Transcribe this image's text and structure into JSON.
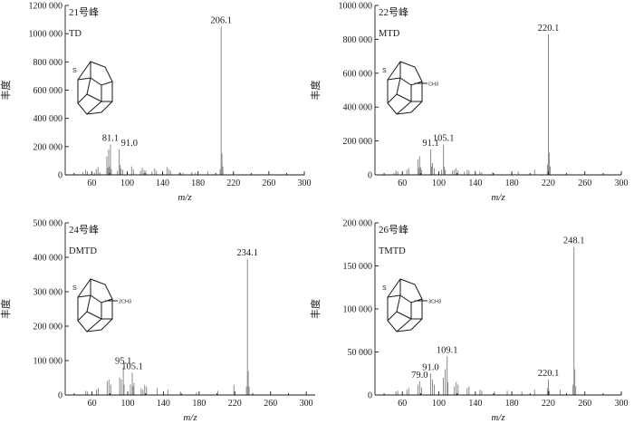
{
  "chart_data": [
    {
      "type": "bar",
      "title": "21号峰",
      "compound": "TD",
      "ylabel": "丰度",
      "xlabel": "m/z",
      "xlim": [
        30,
        300
      ],
      "xticks": [
        60,
        100,
        140,
        180,
        220,
        260,
        300
      ],
      "ylim": [
        0,
        1200000
      ],
      "yticks": [
        0,
        200000,
        400000,
        600000,
        800000,
        1000000,
        1200000
      ],
      "ytick_labels": [
        "0",
        "200 000",
        "400 000",
        "600 000",
        "800 000",
        "1000 000",
        "1200 000"
      ],
      "structure_label": "S",
      "structure_substituent": "",
      "peak_labels": [
        {
          "x": 81.1,
          "text": "81.1"
        },
        {
          "x": 91.0,
          "text": "91.0"
        },
        {
          "x": 206.1,
          "text": "206.1"
        }
      ],
      "peaks": [
        [
          50,
          20000
        ],
        [
          53,
          35000
        ],
        [
          55,
          25000
        ],
        [
          63,
          15000
        ],
        [
          65,
          40000
        ],
        [
          67,
          55000
        ],
        [
          69,
          20000
        ],
        [
          77,
          130000
        ],
        [
          78,
          50000
        ],
        [
          79,
          180000
        ],
        [
          80,
          60000
        ],
        [
          81.1,
          215000
        ],
        [
          82,
          40000
        ],
        [
          89,
          30000
        ],
        [
          91.0,
          180000
        ],
        [
          92,
          70000
        ],
        [
          93,
          45000
        ],
        [
          95,
          35000
        ],
        [
          105,
          60000
        ],
        [
          107,
          40000
        ],
        [
          115,
          30000
        ],
        [
          117,
          50000
        ],
        [
          119,
          35000
        ],
        [
          121,
          30000
        ],
        [
          128,
          25000
        ],
        [
          131,
          45000
        ],
        [
          133,
          30000
        ],
        [
          145,
          55000
        ],
        [
          147,
          40000
        ],
        [
          149,
          30000
        ],
        [
          159,
          20000
        ],
        [
          163,
          15000
        ],
        [
          173,
          20000
        ],
        [
          177,
          15000
        ],
        [
          191,
          25000
        ],
        [
          205,
          40000
        ],
        [
          206.1,
          1050000
        ],
        [
          207,
          150000
        ],
        [
          208,
          60000
        ]
      ]
    },
    {
      "type": "bar",
      "title": "22号峰",
      "compound": "MTD",
      "ylabel": "丰度",
      "xlabel": "m/z",
      "xlim": [
        30,
        300
      ],
      "xticks": [
        60,
        100,
        140,
        180,
        220,
        260,
        300
      ],
      "ylim": [
        0,
        1000000
      ],
      "yticks": [
        0,
        200000,
        400000,
        600000,
        800000,
        1000000
      ],
      "ytick_labels": [
        "0",
        "200 000",
        "400 000",
        "600 000",
        "800 000",
        "1000 000"
      ],
      "structure_label": "S",
      "structure_substituent": "CH3",
      "peak_labels": [
        {
          "x": 91.1,
          "text": "91.1"
        },
        {
          "x": 105.1,
          "text": "105.1"
        },
        {
          "x": 220.1,
          "text": "220.1"
        }
      ],
      "peaks": [
        [
          51,
          10000
        ],
        [
          53,
          25000
        ],
        [
          55,
          20000
        ],
        [
          65,
          30000
        ],
        [
          67,
          40000
        ],
        [
          77,
          90000
        ],
        [
          78,
          40000
        ],
        [
          79,
          110000
        ],
        [
          80,
          45000
        ],
        [
          81,
          30000
        ],
        [
          91.1,
          150000
        ],
        [
          92,
          50000
        ],
        [
          93,
          70000
        ],
        [
          95,
          40000
        ],
        [
          103,
          30000
        ],
        [
          105.1,
          180000
        ],
        [
          106,
          50000
        ],
        [
          107,
          30000
        ],
        [
          115,
          25000
        ],
        [
          117,
          30000
        ],
        [
          119,
          40000
        ],
        [
          121,
          25000
        ],
        [
          128,
          20000
        ],
        [
          131,
          30000
        ],
        [
          133,
          25000
        ],
        [
          145,
          20000
        ],
        [
          147,
          15000
        ],
        [
          159,
          15000
        ],
        [
          187,
          20000
        ],
        [
          205,
          30000
        ],
        [
          219,
          60000
        ],
        [
          220.1,
          830000
        ],
        [
          221,
          130000
        ],
        [
          222,
          50000
        ]
      ]
    },
    {
      "type": "bar",
      "title": "24号峰",
      "compound": "DMTD",
      "ylabel": "丰度",
      "xlabel": "m/z",
      "xlim": [
        30,
        310
      ],
      "xticks": [
        60,
        100,
        140,
        180,
        220,
        260,
        300
      ],
      "ylim": [
        0,
        500000
      ],
      "yticks": [
        0,
        100000,
        200000,
        300000,
        400000,
        500000
      ],
      "ytick_labels": [
        "0",
        "100 000",
        "200 000",
        "300 000",
        "400 000",
        "500 000"
      ],
      "structure_label": "S",
      "structure_substituent": "2CH3",
      "peak_labels": [
        {
          "x": 95.1,
          "text": "95.1"
        },
        {
          "x": 105.1,
          "text": "105.1"
        },
        {
          "x": 234.1,
          "text": "234.1"
        }
      ],
      "peaks": [
        [
          53,
          12000
        ],
        [
          55,
          10000
        ],
        [
          65,
          15000
        ],
        [
          67,
          20000
        ],
        [
          77,
          40000
        ],
        [
          79,
          45000
        ],
        [
          81,
          30000
        ],
        [
          91,
          50000
        ],
        [
          93,
          45000
        ],
        [
          95.1,
          80000
        ],
        [
          96,
          30000
        ],
        [
          103,
          30000
        ],
        [
          105.1,
          65000
        ],
        [
          106,
          25000
        ],
        [
          107,
          35000
        ],
        [
          115,
          20000
        ],
        [
          117,
          15000
        ],
        [
          119,
          30000
        ],
        [
          121,
          25000
        ],
        [
          133,
          20000
        ],
        [
          145,
          15000
        ],
        [
          159,
          10000
        ],
        [
          177,
          8000
        ],
        [
          201,
          12000
        ],
        [
          219,
          30000
        ],
        [
          233,
          25000
        ],
        [
          234.1,
          395000
        ],
        [
          235,
          70000
        ],
        [
          236,
          25000
        ]
      ]
    },
    {
      "type": "bar",
      "title": "26号峰",
      "compound": "TMTD",
      "ylabel": "丰度",
      "xlabel": "m/z",
      "xlim": [
        30,
        300
      ],
      "xticks": [
        60,
        100,
        140,
        180,
        220,
        260,
        300
      ],
      "ylim": [
        0,
        200000
      ],
      "yticks": [
        0,
        50000,
        100000,
        150000,
        200000
      ],
      "ytick_labels": [
        "0",
        "50 000",
        "100 000",
        "150 000",
        "200 000"
      ],
      "structure_label": "S",
      "structure_substituent": "3CH3",
      "peak_labels": [
        {
          "x": 79.0,
          "text": "79.0"
        },
        {
          "x": 91.0,
          "text": "91.0"
        },
        {
          "x": 109.1,
          "text": "109.1"
        },
        {
          "x": 220.1,
          "text": "220.1"
        },
        {
          "x": 248.1,
          "text": "248.1"
        }
      ],
      "peaks": [
        [
          53,
          4000
        ],
        [
          55,
          5000
        ],
        [
          65,
          6000
        ],
        [
          67,
          8000
        ],
        [
          77,
          12000
        ],
        [
          79.0,
          16000
        ],
        [
          81,
          9000
        ],
        [
          91.0,
          25000
        ],
        [
          93,
          18000
        ],
        [
          95,
          12000
        ],
        [
          105,
          20000
        ],
        [
          107,
          30000
        ],
        [
          109.1,
          45000
        ],
        [
          110,
          15000
        ],
        [
          117,
          10000
        ],
        [
          119,
          15000
        ],
        [
          121,
          12000
        ],
        [
          131,
          8000
        ],
        [
          133,
          10000
        ],
        [
          145,
          6000
        ],
        [
          147,
          5000
        ],
        [
          161,
          4000
        ],
        [
          175,
          5000
        ],
        [
          191,
          4000
        ],
        [
          205,
          6000
        ],
        [
          219,
          8000
        ],
        [
          220.1,
          18000
        ],
        [
          221,
          5000
        ],
        [
          233,
          6000
        ],
        [
          247,
          12000
        ],
        [
          248.1,
          172000
        ],
        [
          249,
          30000
        ],
        [
          250,
          10000
        ]
      ]
    }
  ]
}
